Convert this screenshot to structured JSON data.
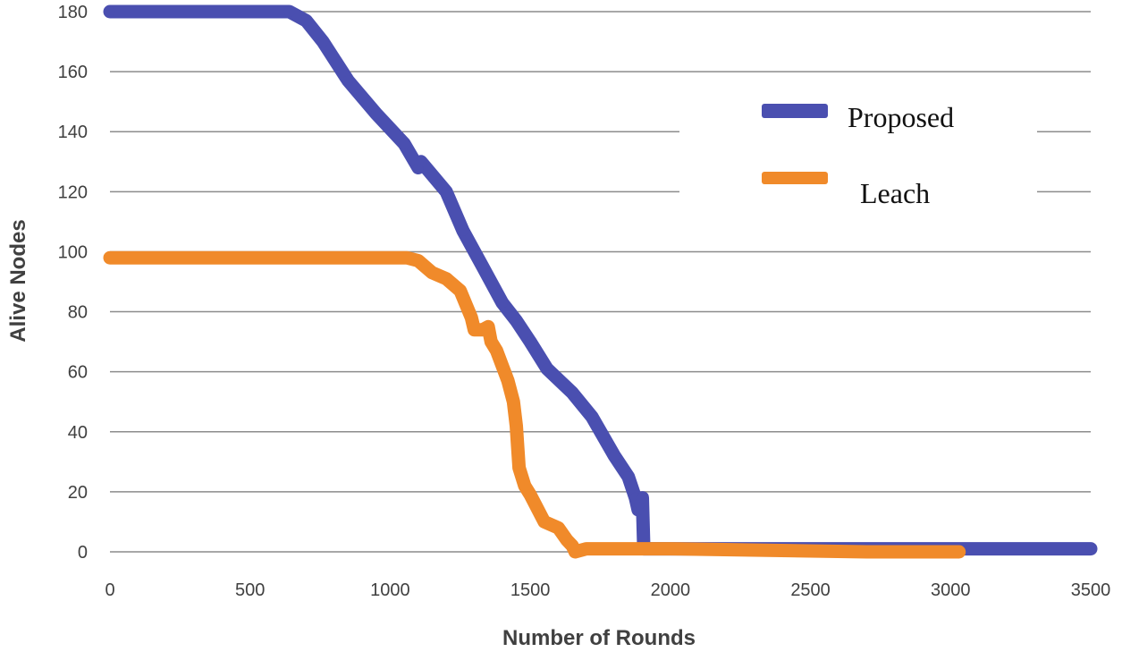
{
  "chart_data": {
    "type": "line",
    "title": "",
    "xlabel": "Number of  Rounds",
    "ylabel": "Alive Nodes",
    "xlim": [
      0,
      3500
    ],
    "ylim": [
      0,
      180
    ],
    "x_ticks": [
      "0",
      "500",
      "1000",
      "1500",
      "2000",
      "2500",
      "3000",
      "3500"
    ],
    "y_ticks": [
      "0",
      "20",
      "40",
      "60",
      "80",
      "100",
      "120",
      "140",
      "160",
      "180"
    ],
    "grid": "horizontal",
    "legend_position": "right",
    "series": [
      {
        "name": "Proposed",
        "color": "#4a4fb0",
        "x": [
          0,
          640,
          700,
          760,
          850,
          950,
          1050,
          1100,
          1110,
          1200,
          1260,
          1330,
          1400,
          1450,
          1500,
          1560,
          1650,
          1720,
          1800,
          1850,
          1875,
          1885,
          1890,
          1900,
          1905,
          3500
        ],
        "y": [
          180,
          180,
          177,
          170,
          157,
          146,
          136,
          128,
          130,
          120,
          107,
          95,
          83,
          77,
          70,
          61,
          53,
          45,
          32,
          25,
          18,
          14,
          16,
          18,
          1,
          1
        ]
      },
      {
        "name": "Leach",
        "color": "#f08a2a",
        "x": [
          0,
          1060,
          1100,
          1150,
          1200,
          1250,
          1290,
          1300,
          1330,
          1350,
          1360,
          1380,
          1400,
          1420,
          1440,
          1450,
          1460,
          1480,
          1500,
          1550,
          1600,
          1630,
          1650,
          1660,
          1700,
          2000,
          2700,
          3030
        ],
        "y": [
          98,
          98,
          97,
          93,
          91,
          87,
          78,
          74,
          74,
          75,
          70,
          67,
          62,
          57,
          50,
          42,
          28,
          22,
          19,
          10,
          8,
          4,
          2,
          0,
          1,
          1,
          0,
          0
        ]
      }
    ]
  }
}
